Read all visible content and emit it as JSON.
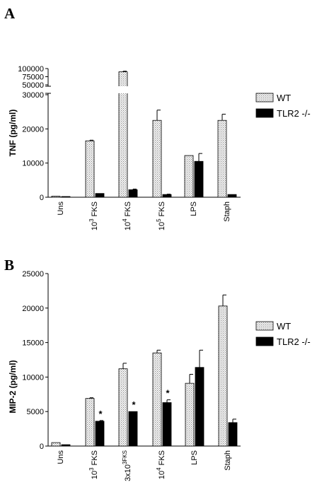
{
  "colors": {
    "wt": "#d8d8d8",
    "tlr2": "#000000"
  },
  "chart_data": [
    {
      "panel": "A",
      "type": "bar",
      "ylabel": "TNF (pg/ml)",
      "categories": [
        "Uns",
        "10^3 FKS",
        "10^4 FKS",
        "10^5 FKS",
        "LPS",
        "Staph"
      ],
      "y_break": {
        "lower_range": [
          0,
          30000
        ],
        "upper_range": [
          50000,
          100000
        ]
      },
      "yticks_lower": [
        "0",
        "10000",
        "20000",
        "30000"
      ],
      "yticks_upper": [
        "50000",
        "75000",
        "100000"
      ],
      "legend": [
        "WT",
        "TLR2 -/-"
      ],
      "legend_position": "right",
      "series": [
        {
          "name": "WT",
          "values": [
            300,
            16500,
            90000,
            22500,
            12200,
            22500
          ],
          "errors": [
            0,
            200,
            2000,
            3000,
            0,
            1800
          ]
        },
        {
          "name": "TLR2 -/-",
          "values": [
            200,
            1100,
            2200,
            800,
            10500,
            800
          ],
          "errors": [
            0,
            0,
            200,
            100,
            2300,
            0
          ]
        }
      ],
      "annotations": []
    },
    {
      "panel": "B",
      "type": "bar",
      "ylabel": "MIP-2 (pg/ml)",
      "categories": [
        "Uns",
        "10^3 FKS",
        "3x10^3FKS",
        "10^4 FKS",
        "LPS",
        "Staph"
      ],
      "ylim": [
        0,
        25000
      ],
      "yticks": [
        "0",
        "5000",
        "10000",
        "15000",
        "20000",
        "25000"
      ],
      "legend": [
        "WT",
        "TLR2 -/-"
      ],
      "legend_position": "right",
      "series": [
        {
          "name": "WT",
          "values": [
            500,
            6900,
            11200,
            13500,
            9100,
            20300
          ],
          "errors": [
            0,
            100,
            800,
            400,
            1300,
            1600
          ]
        },
        {
          "name": "TLR2 -/-",
          "values": [
            200,
            3600,
            5000,
            6300,
            11400,
            3400
          ],
          "errors": [
            0,
            100,
            0,
            400,
            2500,
            500
          ]
        }
      ],
      "annotations": [
        "*",
        "*",
        "*"
      ]
    }
  ]
}
